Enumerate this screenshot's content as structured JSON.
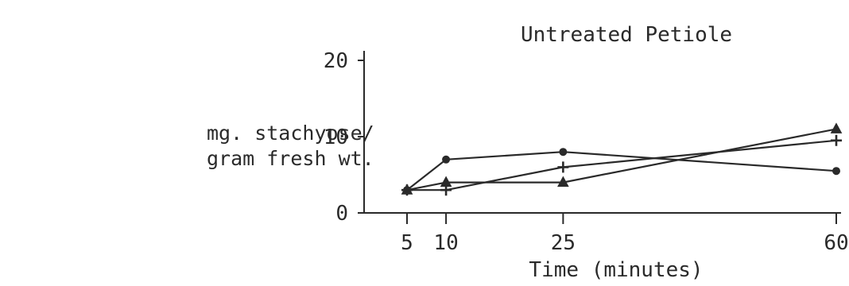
{
  "chart_data": {
    "type": "line",
    "title": "Untreated Petiole",
    "xlabel": "Time (minutes)",
    "ylabel_lines": [
      "mg. stachyose/",
      "gram fresh wt."
    ],
    "x": [
      5,
      10,
      25,
      60
    ],
    "x_ticks": [
      "5",
      "10",
      "25",
      "60"
    ],
    "xlim": [
      5,
      60
    ],
    "y_ticks": [
      "0",
      "10",
      "20"
    ],
    "ylim": [
      0,
      20
    ],
    "grid": false,
    "legend": "none",
    "series": [
      {
        "marker": "dot",
        "values": [
          3,
          7,
          8,
          5.5
        ]
      },
      {
        "marker": "plus",
        "values": [
          3,
          3,
          6,
          9.5
        ]
      },
      {
        "marker": "triangle",
        "values": [
          3,
          4,
          4,
          11
        ]
      }
    ]
  }
}
